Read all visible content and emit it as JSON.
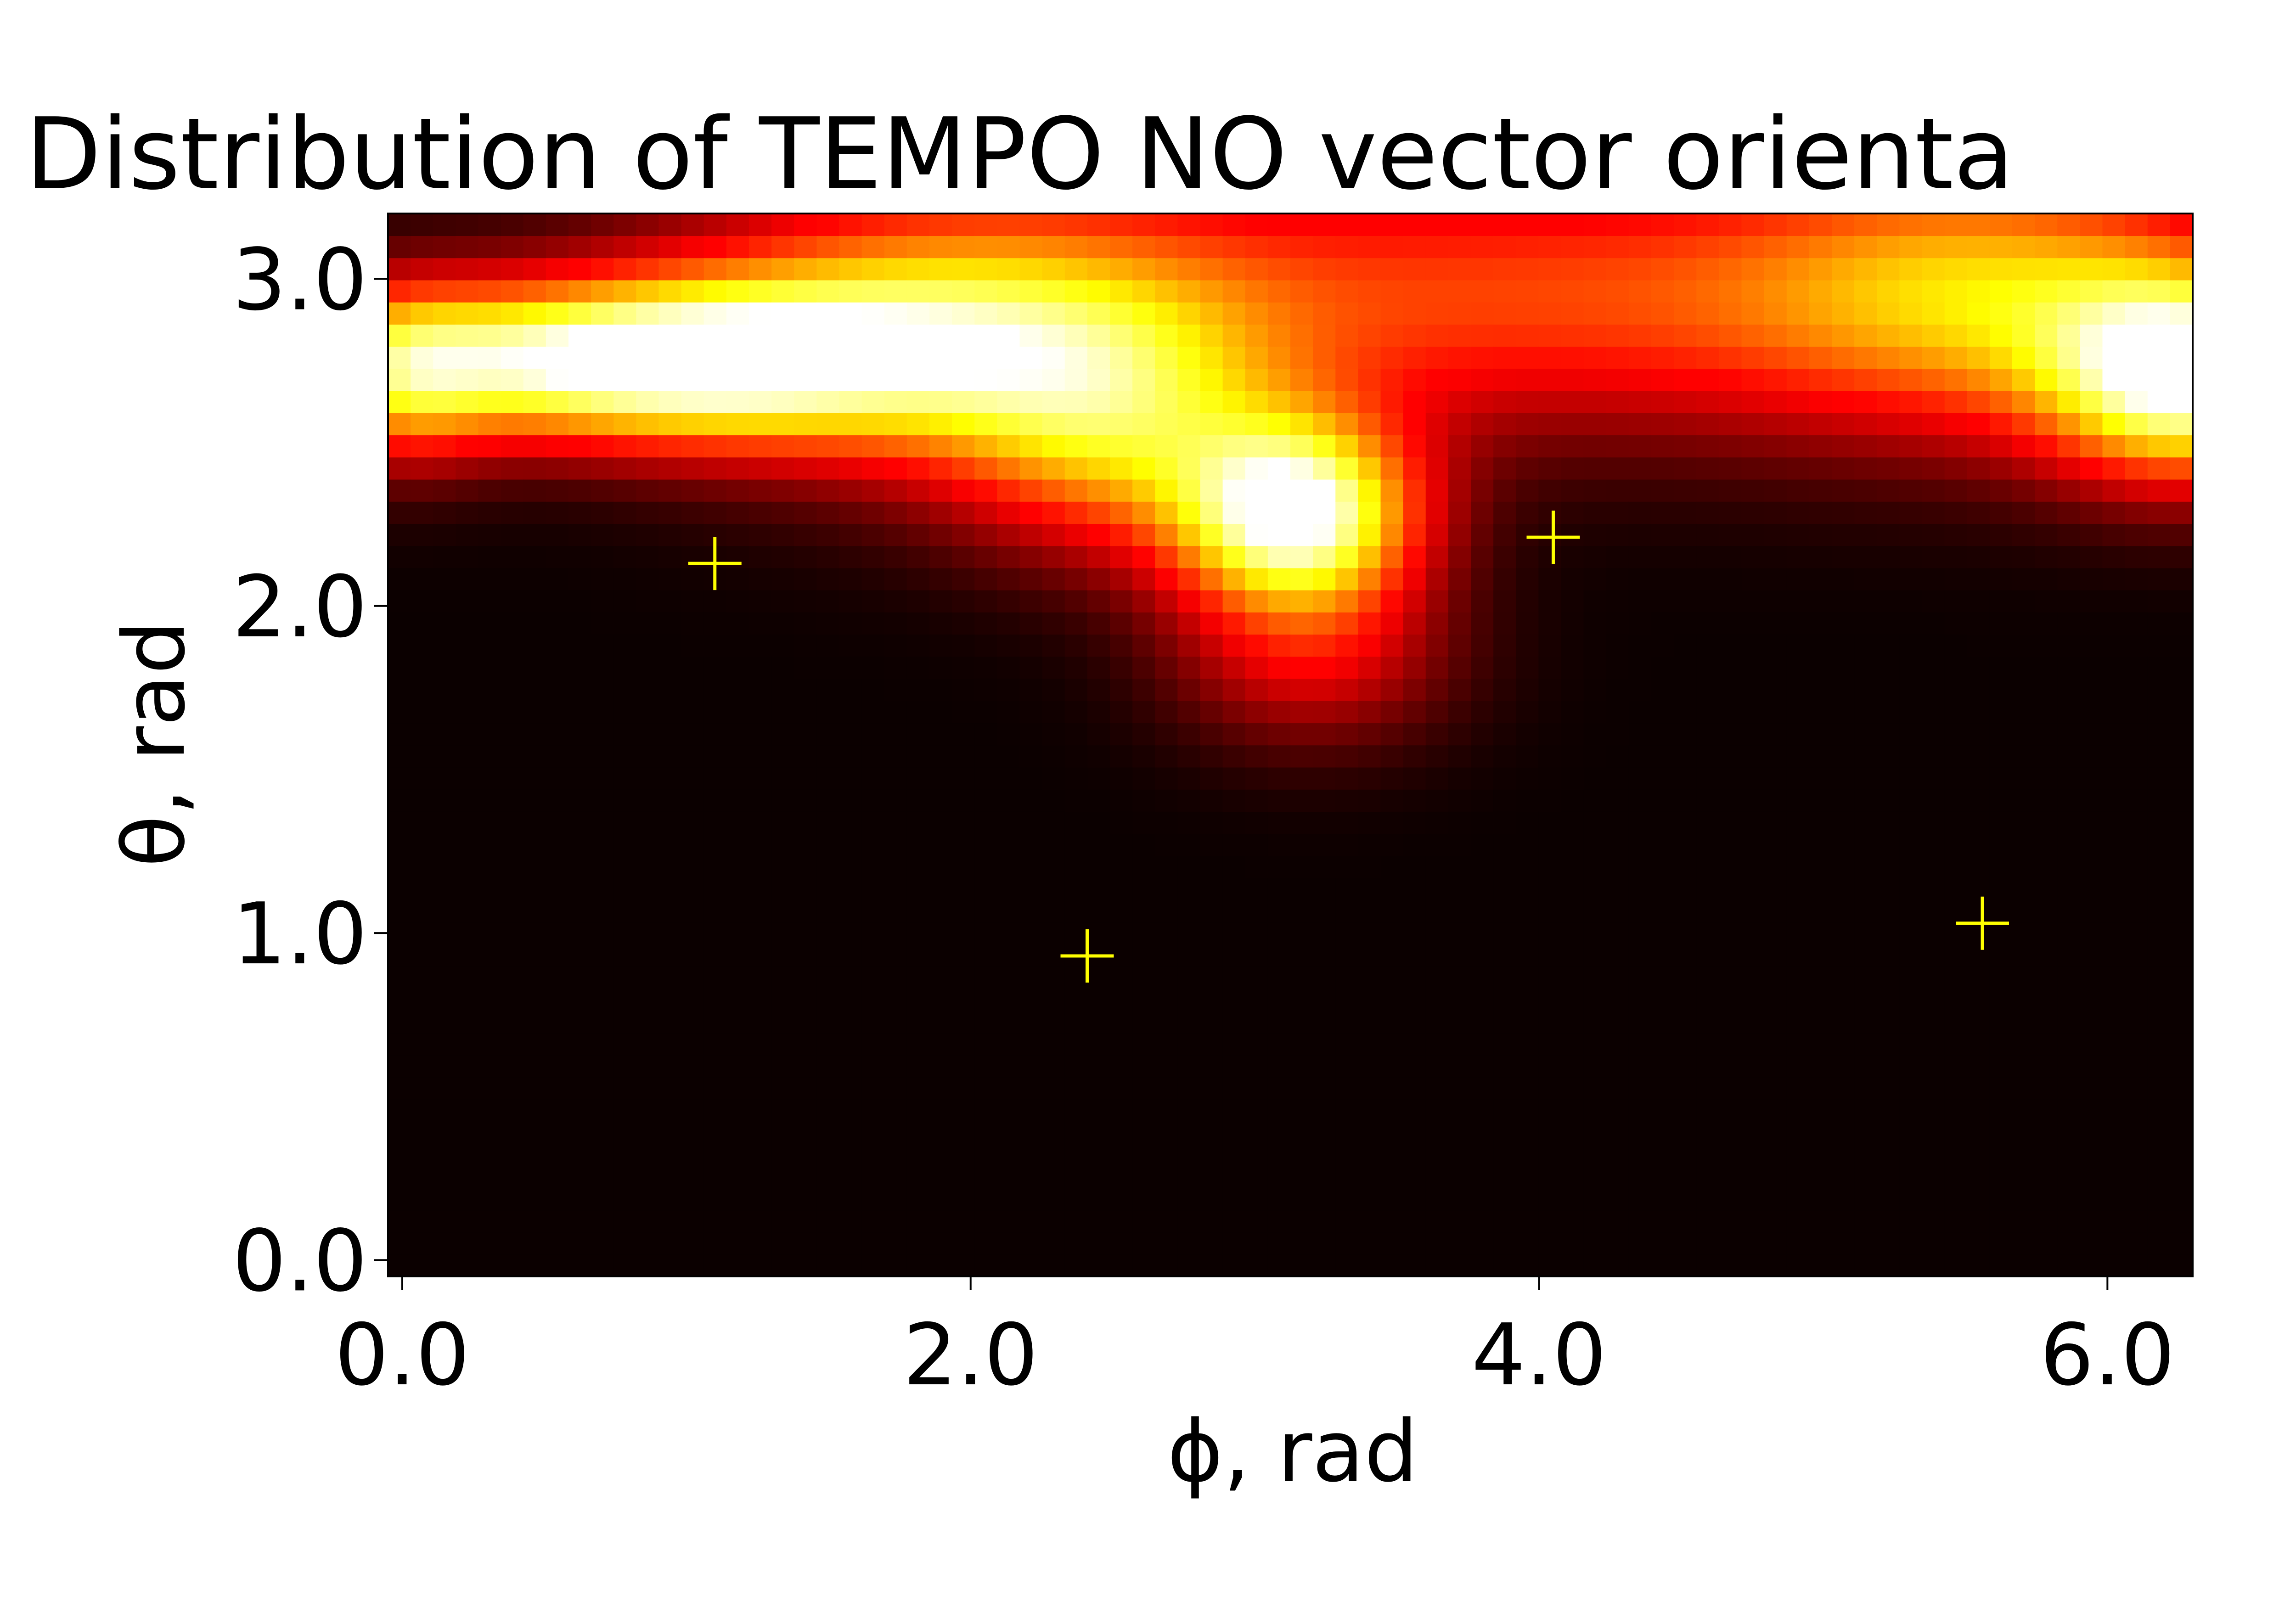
{
  "chart_data": {
    "type": "heatmap",
    "title": "Distribution of TEMPO NO vector orienta",
    "xlabel": "ϕ, rad",
    "ylabel": "θ, rad",
    "xlim": [
      -0.05,
      6.3
    ],
    "ylim": [
      -0.05,
      3.2
    ],
    "x_ticks": [
      0.0,
      2.0,
      4.0,
      6.0
    ],
    "x_tick_labels": [
      "0.0",
      "2.0",
      "4.0",
      "6.0"
    ],
    "y_ticks": [
      0.0,
      1.0,
      2.0,
      3.0
    ],
    "y_tick_labels": [
      "0.0",
      "1.0",
      "2.0",
      "3.0"
    ],
    "colormap": "hot",
    "grid": false,
    "blobs": [
      {
        "x": 0.8,
        "y": 2.75,
        "sx": 0.75,
        "sy": 0.17,
        "amp": 1.0
      },
      {
        "x": 3.15,
        "y": 2.28,
        "sx": 0.3,
        "sy": 0.2,
        "amp": 0.95
      },
      {
        "x": 6.3,
        "y": 2.7,
        "sx": 0.35,
        "sy": 0.22,
        "amp": 0.9
      },
      {
        "x": 0.0,
        "y": 2.7,
        "sx": 0.22,
        "sy": 0.2,
        "amp": 0.35
      },
      {
        "x": 1.9,
        "y": 2.85,
        "sx": 0.7,
        "sy": 0.3,
        "amp": 0.55
      },
      {
        "x": 4.0,
        "y": 2.95,
        "sx": 1.4,
        "sy": 0.3,
        "amp": 0.45
      },
      {
        "x": 5.6,
        "y": 2.95,
        "sx": 0.6,
        "sy": 0.3,
        "amp": 0.45
      },
      {
        "x": 2.5,
        "y": 2.5,
        "sx": 0.4,
        "sy": 0.25,
        "amp": 0.45
      },
      {
        "x": 3.2,
        "y": 1.85,
        "sx": 0.35,
        "sy": 0.2,
        "amp": 0.3
      }
    ],
    "markers": [
      {
        "x": 1.1,
        "y": 2.13
      },
      {
        "x": 2.41,
        "y": 0.93
      },
      {
        "x": 4.05,
        "y": 2.21
      },
      {
        "x": 5.56,
        "y": 1.03
      }
    ],
    "marker_color": "#ffff00",
    "colors": {
      "background": "#ffffff",
      "axes": "#000000",
      "cmap_low": "#0b0000",
      "cmap_mid": "#ff0000",
      "cmap_high_yellow": "#ffff00",
      "cmap_top": "#ffffff"
    }
  }
}
